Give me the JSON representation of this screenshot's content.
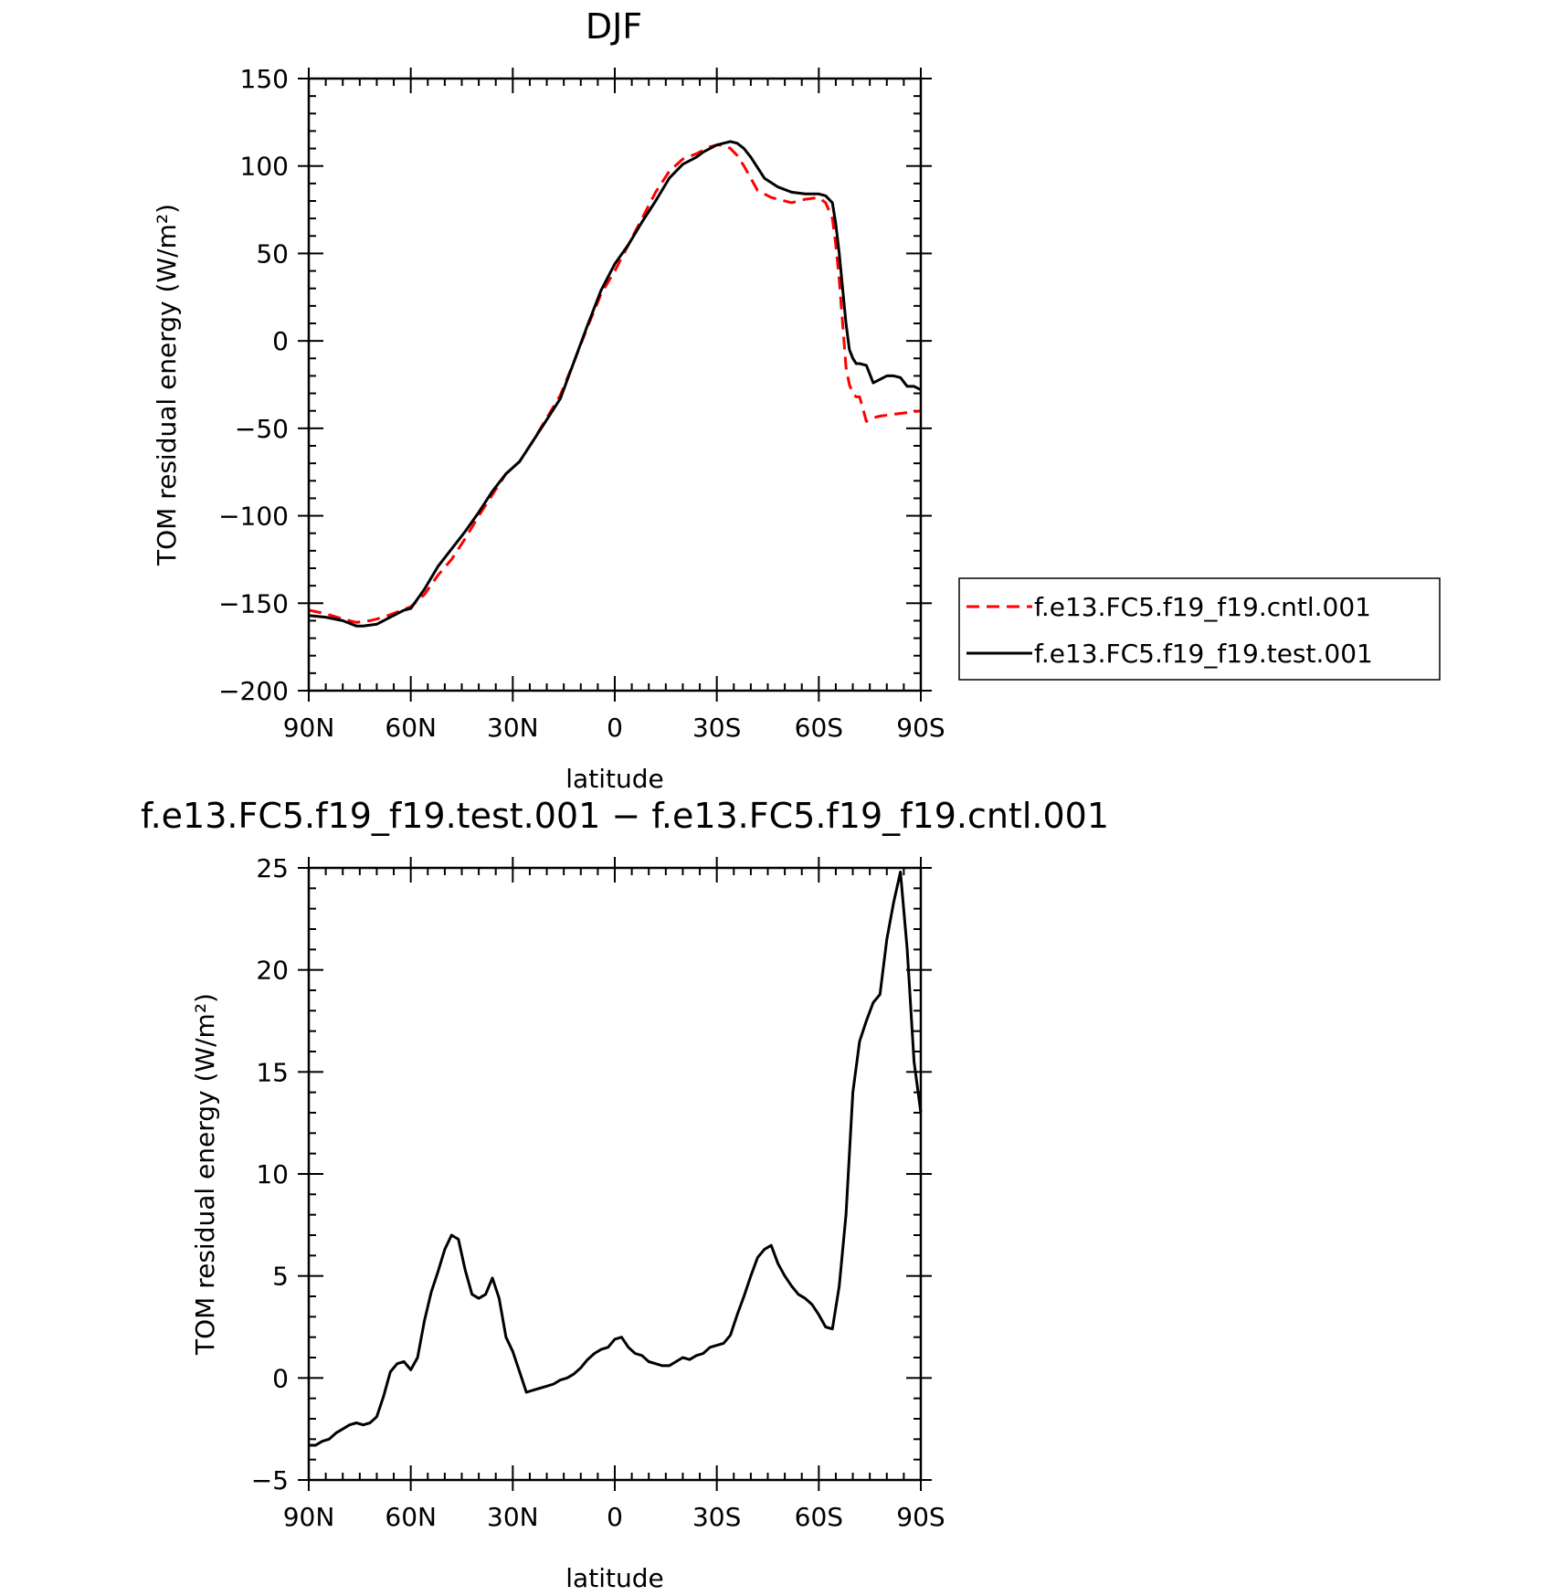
{
  "chart_data": [
    {
      "type": "line",
      "title": "DJF",
      "xlabel": "latitude",
      "ylabel": "TOM residual energy (W/m²)",
      "xlim": [
        90,
        -90
      ],
      "ylim": [
        -200,
        150
      ],
      "xticks": [
        90,
        60,
        30,
        0,
        -30,
        -60,
        -90
      ],
      "xtick_labels": [
        "90N",
        "60N",
        "30N",
        "0",
        "30S",
        "60S",
        "90S"
      ],
      "yticks": [
        -200,
        -150,
        -100,
        -50,
        0,
        50,
        100,
        150
      ],
      "ytick_labels": [
        "−200",
        "−150",
        "−100",
        "−50",
        "0",
        "50",
        "100",
        "150"
      ],
      "grid": false,
      "legend": "right",
      "series": [
        {
          "name": "f.e13.FC5.f19_f19.cntl.001",
          "color": "#ff0000",
          "dash": "dashed",
          "x": [
            90,
            85,
            80,
            76,
            72,
            68,
            64,
            60,
            56,
            52,
            48,
            44,
            40,
            36,
            32,
            28,
            24,
            20,
            16,
            12,
            8,
            4,
            0,
            -4,
            -8,
            -12,
            -16,
            -20,
            -24,
            -28,
            -30,
            -32,
            -34,
            -36,
            -38,
            -40,
            -42,
            -44,
            -46,
            -48,
            -52,
            -56,
            -60,
            -62,
            -64,
            -65,
            -66,
            -67,
            -68,
            -69,
            -70,
            -71,
            -72,
            -74,
            -76,
            -78,
            -82,
            -86,
            -90
          ],
          "y": [
            -154,
            -156,
            -159,
            -161,
            -160,
            -158,
            -155,
            -152,
            -145,
            -134,
            -125,
            -113,
            -100,
            -88,
            -76,
            -69,
            -57,
            -44,
            -31,
            -12,
            8,
            27,
            40,
            55,
            70,
            85,
            97,
            104,
            107,
            111,
            112,
            112,
            110,
            106,
            100,
            93,
            86,
            84,
            82,
            81,
            79,
            81,
            82,
            79,
            70,
            55,
            35,
            10,
            -15,
            -25,
            -30,
            -32,
            -32,
            -46,
            -44,
            -43,
            -42,
            -41,
            -40
          ]
        },
        {
          "name": "f.e13.FC5.f19_f19.test.001",
          "color": "#000000",
          "dash": "solid",
          "x": [
            90,
            85,
            80,
            76,
            74,
            70,
            66,
            62,
            60,
            56,
            52,
            48,
            44,
            40,
            36,
            32,
            28,
            24,
            20,
            16,
            12,
            8,
            4,
            0,
            -4,
            -8,
            -12,
            -16,
            -20,
            -24,
            -26,
            -28,
            -30,
            -32,
            -34,
            -36,
            -38,
            -40,
            -44,
            -48,
            -52,
            -56,
            -60,
            -62,
            -64,
            -65,
            -66,
            -67,
            -68,
            -69,
            -70,
            -71,
            -72,
            -74,
            -76,
            -78,
            -80,
            -82,
            -84,
            -86,
            -88,
            -90
          ],
          "y": [
            -157,
            -158,
            -160,
            -163,
            -163,
            -162,
            -158,
            -154,
            -153,
            -142,
            -129,
            -119,
            -109,
            -98,
            -86,
            -76,
            -69,
            -57,
            -45,
            -33,
            -12,
            9,
            29,
            44,
            55,
            68,
            80,
            93,
            101,
            105,
            108,
            110,
            112,
            113,
            114,
            113,
            110,
            105,
            93,
            88,
            85,
            84,
            84,
            83,
            79,
            67,
            50,
            30,
            10,
            -5,
            -10,
            -13,
            -13,
            -14,
            -24,
            -22,
            -20,
            -20,
            -21,
            -26,
            -26,
            -28
          ]
        }
      ]
    },
    {
      "type": "line",
      "title": "f.e13.FC5.f19_f19.test.001 − f.e13.FC5.f19_f19.cntl.001",
      "xlabel": "latitude",
      "ylabel": "TOM residual energy (W/m²)",
      "xlim": [
        90,
        -90
      ],
      "ylim": [
        -5,
        25
      ],
      "xticks": [
        90,
        60,
        30,
        0,
        -30,
        -60,
        -90
      ],
      "xtick_labels": [
        "90N",
        "60N",
        "30N",
        "0",
        "30S",
        "60S",
        "90S"
      ],
      "yticks": [
        -5,
        0,
        5,
        10,
        15,
        20,
        25
      ],
      "ytick_labels": [
        "−5",
        "0",
        "5",
        "10",
        "15",
        "20",
        "25"
      ],
      "grid": false,
      "series": [
        {
          "color": "#000000",
          "dash": "solid",
          "x": [
            90,
            88,
            86,
            84,
            82,
            80,
            78,
            76,
            74,
            72,
            70,
            68,
            66,
            64,
            62,
            60,
            58,
            56,
            54,
            52,
            50,
            48,
            46,
            44,
            42,
            40,
            38,
            36,
            34,
            32,
            30,
            28,
            26,
            24,
            22,
            20,
            18,
            16,
            14,
            12,
            10,
            8,
            6,
            4,
            2,
            0,
            -2,
            -4,
            -6,
            -8,
            -10,
            -12,
            -14,
            -16,
            -18,
            -20,
            -22,
            -24,
            -26,
            -28,
            -30,
            -32,
            -34,
            -36,
            -38,
            -40,
            -42,
            -44,
            -46,
            -48,
            -50,
            -52,
            -54,
            -56,
            -58,
            -60,
            -62,
            -64,
            -66,
            -68,
            -70,
            -72,
            -74,
            -76,
            -78,
            -80,
            -82,
            -84,
            -86,
            -88,
            -90
          ],
          "y": [
            -3.3,
            -3.3,
            -3.1,
            -3.0,
            -2.7,
            -2.5,
            -2.3,
            -2.2,
            -2.3,
            -2.2,
            -1.9,
            -0.9,
            0.3,
            0.7,
            0.8,
            0.4,
            1.0,
            2.8,
            4.2,
            5.2,
            6.3,
            7.0,
            6.8,
            5.3,
            4.1,
            3.9,
            4.1,
            4.9,
            3.9,
            2.0,
            1.3,
            0.3,
            -0.7,
            -0.6,
            -0.5,
            -0.4,
            -0.3,
            -0.1,
            0.0,
            0.2,
            0.5,
            0.9,
            1.2,
            1.4,
            1.5,
            1.9,
            2.0,
            1.5,
            1.2,
            1.1,
            0.8,
            0.7,
            0.6,
            0.6,
            0.8,
            1.0,
            0.9,
            1.1,
            1.2,
            1.5,
            1.6,
            1.7,
            2.1,
            3.1,
            4.0,
            5.0,
            5.9,
            6.3,
            6.5,
            5.6,
            5.0,
            4.5,
            4.1,
            3.9,
            3.6,
            3.1,
            2.5,
            2.4,
            4.5,
            8.0,
            14.0,
            16.5,
            17.5,
            18.4,
            18.8,
            21.5,
            23.3,
            24.8,
            21.0,
            15.5,
            13.0
          ]
        }
      ]
    }
  ]
}
